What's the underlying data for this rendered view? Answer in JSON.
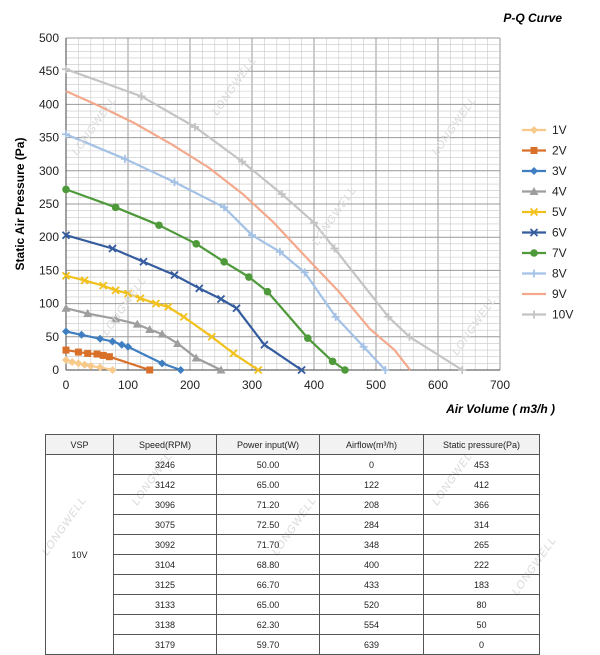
{
  "chart_data": {
    "type": "line",
    "title": "P-Q Curve",
    "xlabel": "Air Volume ( m3/h )",
    "ylabel": "Static Air Pressure  (Pa)",
    "xlim": [
      0,
      700
    ],
    "ylim": [
      0,
      500
    ],
    "xticks": [
      0,
      100,
      200,
      300,
      400,
      500,
      600,
      700
    ],
    "yticks": [
      0,
      50,
      100,
      150,
      200,
      250,
      300,
      350,
      400,
      450,
      500
    ],
    "grid": true,
    "legend_position": "right",
    "series": [
      {
        "name": "1V",
        "color": "#f7c98b",
        "marker": "diamond",
        "x": [
          0,
          10,
          20,
          30,
          40,
          55,
          75
        ],
        "y": [
          15,
          12,
          10,
          8,
          6,
          4,
          0
        ]
      },
      {
        "name": "2V",
        "color": "#d9702a",
        "marker": "square",
        "x": [
          0,
          20,
          35,
          50,
          60,
          70,
          135
        ],
        "y": [
          30,
          27,
          25,
          24,
          22,
          20,
          0
        ]
      },
      {
        "name": "3V",
        "color": "#3f7fc1",
        "marker": "diamond",
        "x": [
          0,
          25,
          55,
          75,
          90,
          100,
          155,
          185
        ],
        "y": [
          58,
          53,
          47,
          43,
          38,
          35,
          10,
          0
        ]
      },
      {
        "name": "4V",
        "color": "#9e9e9e",
        "marker": "triangle",
        "x": [
          0,
          35,
          80,
          115,
          135,
          155,
          180,
          210,
          250
        ],
        "y": [
          93,
          85,
          77,
          69,
          61,
          54,
          40,
          18,
          0
        ]
      },
      {
        "name": "5V",
        "color": "#f2c11c",
        "marker": "x",
        "x": [
          0,
          30,
          60,
          80,
          100,
          120,
          145,
          165,
          190,
          235,
          270,
          310
        ],
        "y": [
          142,
          135,
          127,
          120,
          115,
          108,
          100,
          95,
          80,
          50,
          25,
          0
        ]
      },
      {
        "name": "6V",
        "color": "#355c9e",
        "marker": "x",
        "x": [
          0,
          75,
          125,
          175,
          215,
          250,
          275,
          320,
          380
        ],
        "y": [
          203,
          183,
          163,
          143,
          123,
          107,
          93,
          38,
          0
        ]
      },
      {
        "name": "7V",
        "color": "#4e9a3b",
        "marker": "circle",
        "x": [
          0,
          80,
          150,
          210,
          255,
          295,
          325,
          390,
          430,
          450
        ],
        "y": [
          272,
          245,
          218,
          190,
          163,
          140,
          118,
          48,
          13,
          0
        ]
      },
      {
        "name": "8V",
        "color": "#a4c2e6",
        "marker": "plus",
        "x": [
          0,
          95,
          175,
          255,
          300,
          345,
          385,
          435,
          480,
          515
        ],
        "y": [
          355,
          318,
          283,
          245,
          203,
          178,
          147,
          80,
          35,
          0
        ]
      },
      {
        "name": "9V",
        "color": "#f4a98c",
        "marker": "none",
        "x": [
          0,
          55,
          110,
          170,
          230,
          285,
          335,
          385,
          440,
          490,
          530,
          555
        ],
        "y": [
          420,
          397,
          372,
          340,
          305,
          265,
          222,
          172,
          118,
          62,
          30,
          0
        ]
      },
      {
        "name": "10V",
        "color": "#c4c4c4",
        "marker": "plus",
        "x": [
          0,
          122,
          208,
          284,
          348,
          400,
          433,
          520,
          554,
          639
        ],
        "y": [
          453,
          412,
          366,
          314,
          265,
          222,
          183,
          80,
          50,
          0
        ]
      }
    ]
  },
  "table": {
    "headers": [
      "VSP",
      "Speed(RPM)",
      "Power input(W)",
      "Airflow(m³/h)",
      "Static pressure(Pa)"
    ],
    "vsp_label": "10V",
    "rows": [
      [
        "3246",
        "50.00",
        "0",
        "453"
      ],
      [
        "3142",
        "65.00",
        "122",
        "412"
      ],
      [
        "3096",
        "71.20",
        "208",
        "366"
      ],
      [
        "3075",
        "72.50",
        "284",
        "314"
      ],
      [
        "3092",
        "71.70",
        "348",
        "265"
      ],
      [
        "3104",
        "68.80",
        "400",
        "222"
      ],
      [
        "3125",
        "66.70",
        "433",
        "183"
      ],
      [
        "3133",
        "65.00",
        "520",
        "80"
      ],
      [
        "3138",
        "62.30",
        "554",
        "50"
      ],
      [
        "3179",
        "59.70",
        "639",
        "0"
      ]
    ]
  },
  "watermark": "LONGWELL"
}
